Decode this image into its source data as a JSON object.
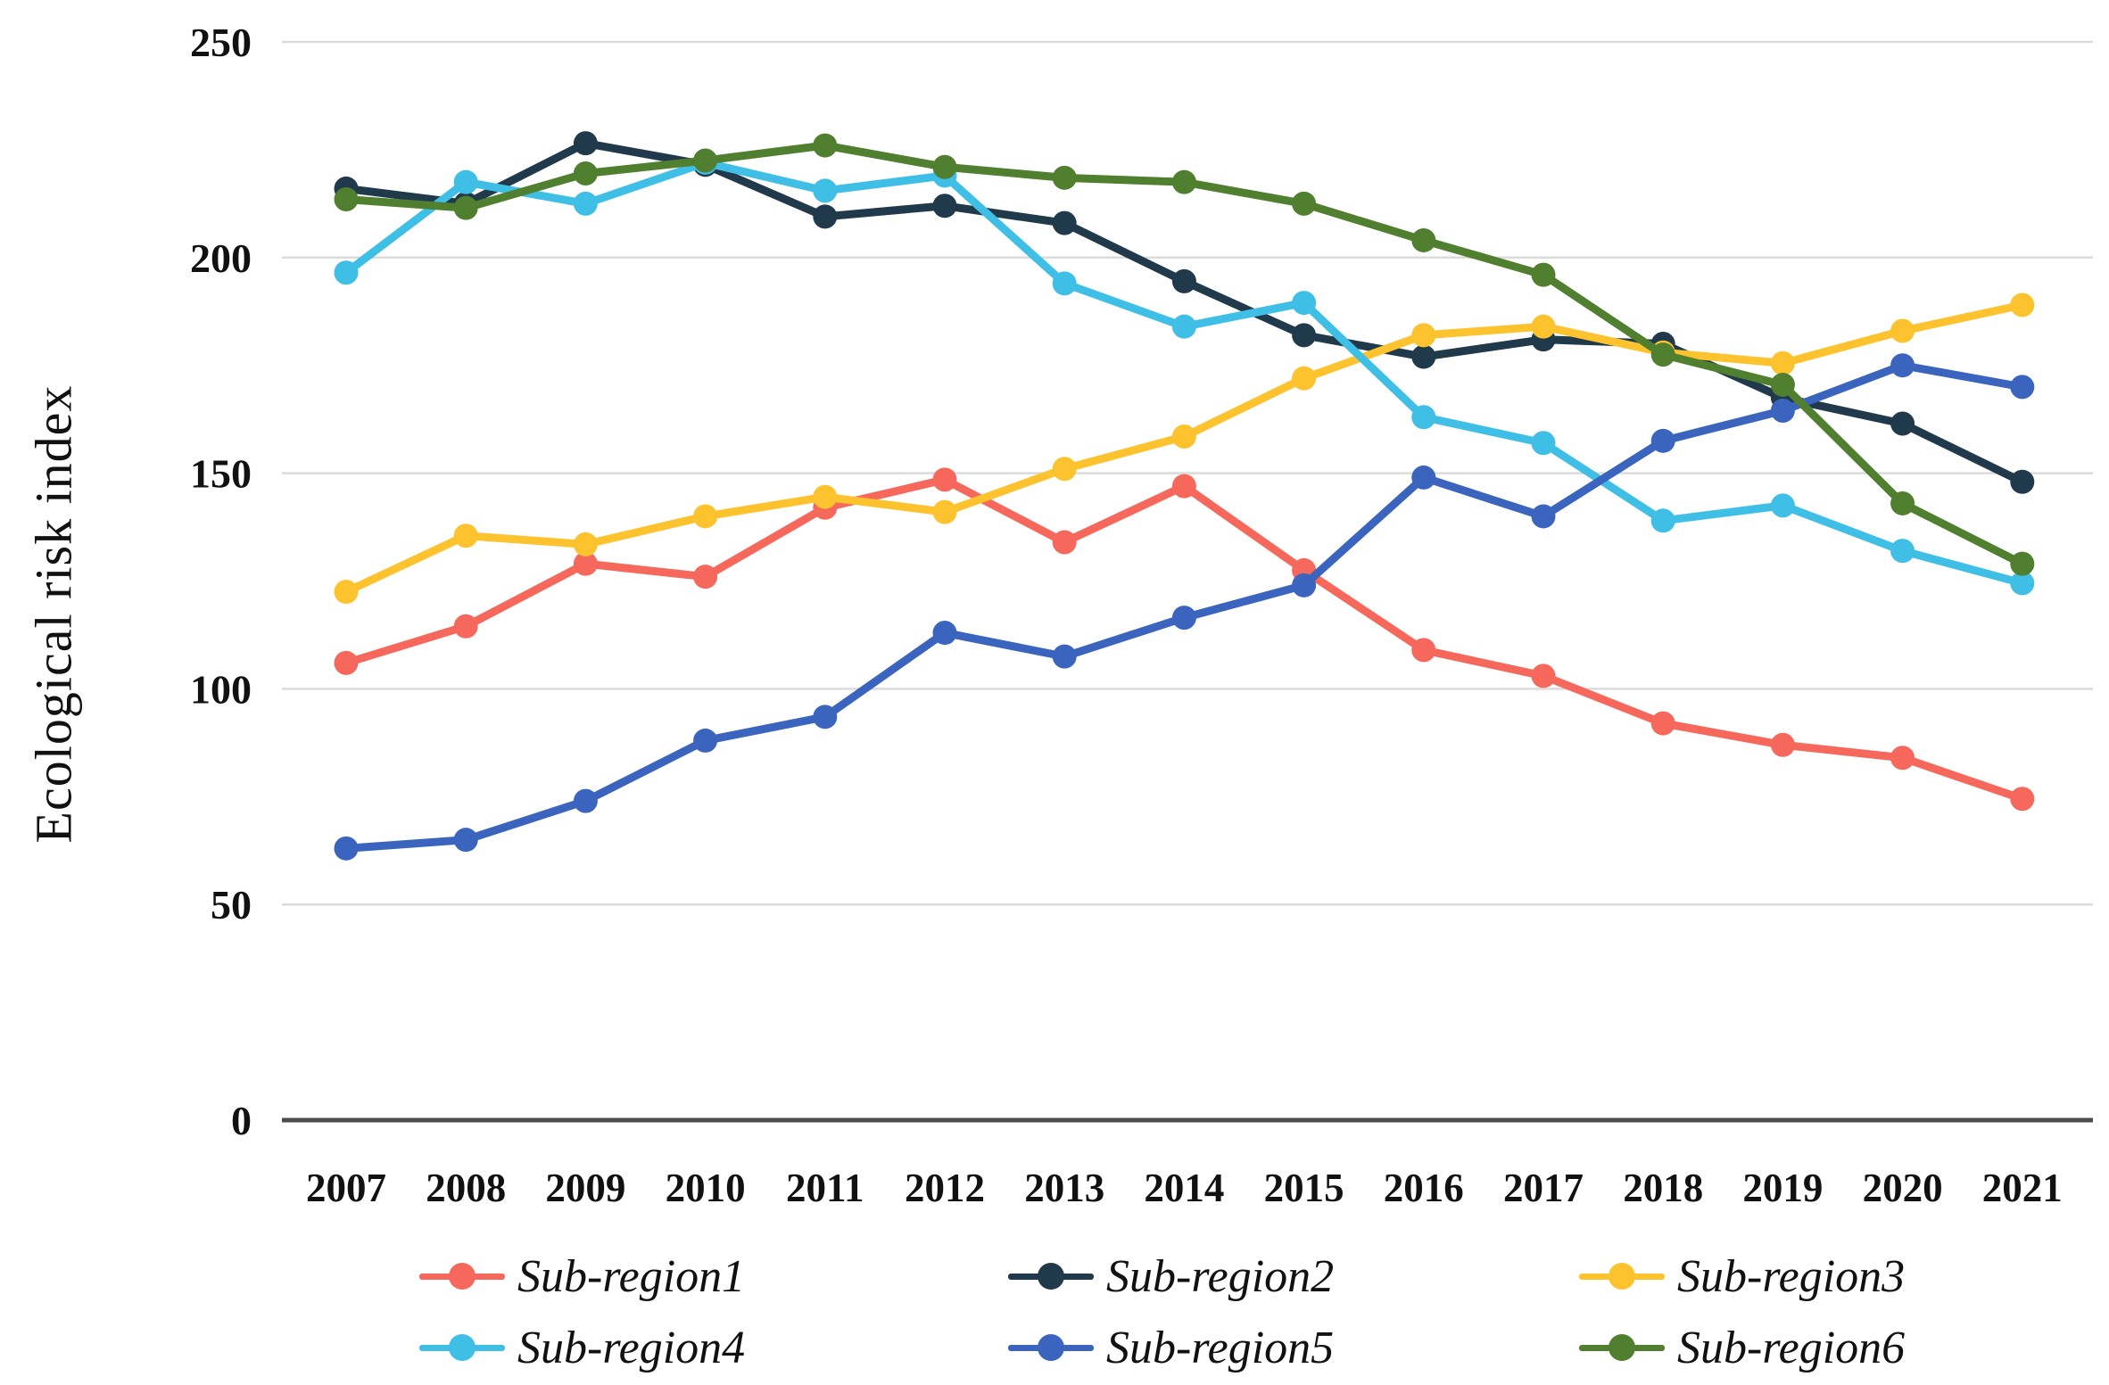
{
  "chart_data": {
    "type": "line",
    "title": "",
    "xlabel": "",
    "ylabel": "Ecological risk index",
    "x_labels": [
      "2007",
      "2008",
      "2009",
      "2010",
      "2011",
      "2012",
      "2013",
      "2014",
      "2015",
      "2016",
      "2017",
      "2018",
      "2019",
      "2020",
      "2021"
    ],
    "y_ticks": [
      0,
      50,
      100,
      150,
      200,
      250
    ],
    "ylim": [
      0,
      250
    ],
    "grid": "horizontal",
    "legend_position": "bottom",
    "gridline_color": "#dbdbdb",
    "axis_color": "#4d4d4d",
    "tick_label_color": "#111111",
    "series": [
      {
        "name": "Sub-region1",
        "color": "#F5685B",
        "values": [
          106,
          114.5,
          129,
          126,
          142,
          148.5,
          134,
          147,
          127.5,
          109,
          103,
          92,
          87,
          84,
          74.5
        ]
      },
      {
        "name": "Sub-region2",
        "color": "#20394B",
        "values": [
          216,
          212.5,
          226.5,
          221.5,
          209.5,
          212,
          208,
          194.5,
          182,
          177,
          181,
          180,
          167.5,
          161.5,
          148
        ]
      },
      {
        "name": "Sub-region3",
        "color": "#FDC32F",
        "values": [
          122.5,
          135.5,
          133.5,
          140,
          144.5,
          141,
          151,
          158.5,
          172,
          182,
          184,
          178,
          175.5,
          183,
          189
        ]
      },
      {
        "name": "Sub-region4",
        "color": "#3FBEE6",
        "values": [
          196.5,
          217.5,
          212.5,
          222,
          215.5,
          219,
          194,
          184,
          189.5,
          163,
          157,
          139,
          142.5,
          132,
          124.5
        ]
      },
      {
        "name": "Sub-region5",
        "color": "#3A64BE",
        "values": [
          63,
          65,
          74,
          88,
          93.5,
          113,
          107.5,
          116.5,
          124,
          149,
          140,
          157.5,
          164.5,
          175,
          170
        ]
      },
      {
        "name": "Sub-region6",
        "color": "#4F7F2F",
        "values": [
          213.5,
          211.5,
          219.5,
          222.5,
          226,
          221,
          218.5,
          217.5,
          212.5,
          204,
          196,
          177.5,
          170.5,
          143,
          129
        ]
      }
    ]
  }
}
